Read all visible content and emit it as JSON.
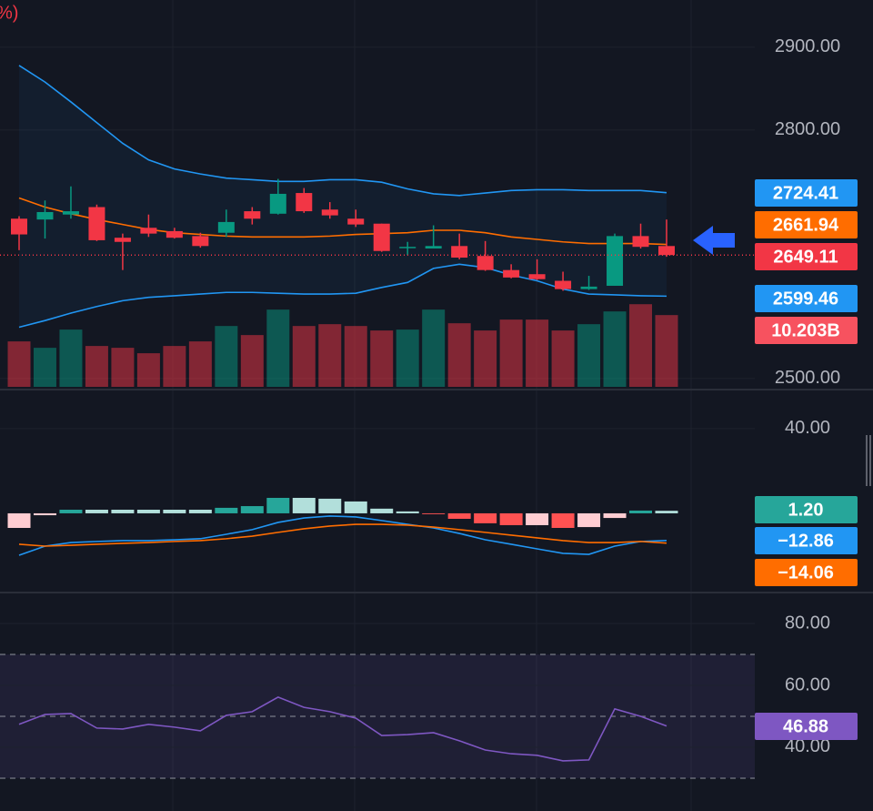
{
  "chart_data": [
    {
      "type": "candlestick",
      "header": "%)",
      "up_color": "#089981",
      "down_color": "#f23645",
      "ylim": [
        2490,
        2957
      ],
      "yticks": [
        {
          "value": 2900,
          "label": "2900.00"
        },
        {
          "value": 2800,
          "label": "2800.00"
        },
        {
          "value": 2500,
          "label": "2500.00"
        }
      ],
      "grid": true,
      "open": [
        2693,
        2692,
        2698,
        2707,
        2670,
        2682,
        2678,
        2672,
        2676,
        2702,
        2699,
        2724,
        2704,
        2693,
        2687,
        2658,
        2657,
        2660,
        2648,
        2631,
        2626,
        2618,
        2608,
        2612,
        2672,
        2660
      ],
      "high": [
        2696,
        2715,
        2732,
        2710,
        2675,
        2698,
        2682,
        2676,
        2704,
        2707,
        2741,
        2730,
        2713,
        2704,
        2687,
        2665,
        2685,
        2675,
        2666,
        2638,
        2644,
        2629,
        2624,
        2675,
        2687,
        2692
      ],
      "low": [
        2655,
        2669,
        2693,
        2666,
        2631,
        2671,
        2669,
        2658,
        2671,
        2686,
        2698,
        2700,
        2693,
        2683,
        2653,
        2649,
        2657,
        2644,
        2630,
        2621,
        2619,
        2606,
        2607,
        2612,
        2657,
        2647
      ],
      "close": [
        2674,
        2701,
        2702,
        2667,
        2665,
        2675,
        2670,
        2660,
        2689,
        2693,
        2723,
        2702,
        2697,
        2686,
        2654,
        2659,
        2660,
        2646,
        2631,
        2622,
        2620,
        2608,
        2611,
        2672,
        2659,
        2649.11
      ],
      "bands": {
        "upper": {
          "color": "#2196f3",
          "values": [
            2878,
            2858,
            2834,
            2809,
            2784,
            2764,
            2753,
            2747,
            2742,
            2740,
            2738,
            2738,
            2740,
            2740,
            2737,
            2729,
            2723,
            2721,
            2724,
            2727,
            2728,
            2728,
            2727,
            2727,
            2727,
            2724.41
          ]
        },
        "middle": {
          "color": "#ff6d00",
          "values": [
            2718,
            2707,
            2699,
            2692,
            2686,
            2680,
            2676,
            2674,
            2672,
            2671,
            2671,
            2671,
            2672,
            2674,
            2675,
            2676,
            2679,
            2679,
            2676,
            2671,
            2668,
            2665,
            2663,
            2663,
            2663,
            2661.94
          ]
        },
        "lower": {
          "color": "#2196f3",
          "values": [
            2562,
            2570,
            2579,
            2587,
            2594,
            2598,
            2600,
            2602,
            2604,
            2604,
            2603,
            2602,
            2602,
            2603,
            2610,
            2616,
            2633,
            2638,
            2634,
            2625,
            2618,
            2608,
            2602,
            2601,
            2600,
            2599.46
          ]
        }
      },
      "volume": {
        "ylim": [
          0,
          55000000000
        ],
        "last_label": "10.203B",
        "values": [
          6460000000,
          5550000000,
          8140000000,
          5810000000,
          5550000000,
          4780000000,
          5810000000,
          6460000000,
          8650000000,
          7360000000,
          10980000000,
          8650000000,
          8910000000,
          8650000000,
          8010000000,
          8140000000,
          10980000000,
          9040000000,
          8010000000,
          9560000000,
          9560000000,
          8010000000,
          8910000000,
          10720000000,
          11750000000,
          10203000000
        ]
      }
    },
    {
      "type": "macd",
      "ylim": [
        -37,
        57.6
      ],
      "yticks": [
        {
          "value": 40,
          "label": "40.00"
        }
      ],
      "grid": true,
      "histogram": {
        "last_label": "1.20",
        "colors": {
          "up_grow": "#26a69a",
          "up_fall": "#b2dfdb",
          "down_grow": "#ff5252",
          "down_fall": "#ffcdd2"
        },
        "values": [
          -6.9,
          -0.9,
          1.7,
          1.7,
          1.7,
          1.7,
          1.7,
          1.7,
          2.6,
          3.4,
          7.3,
          7.3,
          6.9,
          5.6,
          2.2,
          0.9,
          -0.4,
          -2.6,
          -4.7,
          -5.6,
          -5.6,
          -6.9,
          -6.5,
          -2.2,
          1.3,
          1.2
        ]
      },
      "macd": {
        "color": "#2196f3",
        "last_label": "−12.86",
        "values": [
          -19.8,
          -15.5,
          -13.8,
          -13.3,
          -12.9,
          -12.9,
          -12.5,
          -12.0,
          -9.9,
          -7.7,
          -4.3,
          -2.2,
          -1.3,
          -1.7,
          -3.4,
          -5.2,
          -6.9,
          -9.5,
          -12.5,
          -14.6,
          -16.8,
          -18.9,
          -19.4,
          -15.5,
          -13.3,
          -12.86
        ]
      },
      "signal": {
        "color": "#ff6d00",
        "last_label": "−14.06",
        "values": [
          -14.6,
          -15.5,
          -15.1,
          -14.6,
          -14.2,
          -13.8,
          -13.3,
          -12.9,
          -12.0,
          -10.8,
          -9.0,
          -7.3,
          -6.0,
          -5.2,
          -5.2,
          -5.6,
          -6.5,
          -7.7,
          -9.0,
          -10.3,
          -11.6,
          -12.9,
          -13.8,
          -13.8,
          -13.3,
          -14.06
        ]
      }
    },
    {
      "type": "line",
      "ylim": [
        19.4,
        89.7
      ],
      "yticks": [
        {
          "value": 80,
          "label": "80.00"
        },
        {
          "value": 60,
          "label": "60.00"
        },
        {
          "value": 40,
          "label": "40.00"
        }
      ],
      "grid": true,
      "levels": [
        70,
        50,
        30
      ],
      "band_color": "#7e57c2",
      "series": {
        "color": "#7e57c2",
        "values": [
          47.4,
          50.6,
          50.9,
          46.2,
          45.9,
          47.4,
          46.5,
          45.3,
          50.3,
          51.5,
          56.2,
          52.9,
          51.5,
          49.4,
          43.8,
          44.1,
          44.7,
          42.1,
          39.1,
          37.9,
          37.4,
          35.6,
          35.9,
          52.4,
          50.0,
          46.88
        ]
      }
    }
  ]
}
